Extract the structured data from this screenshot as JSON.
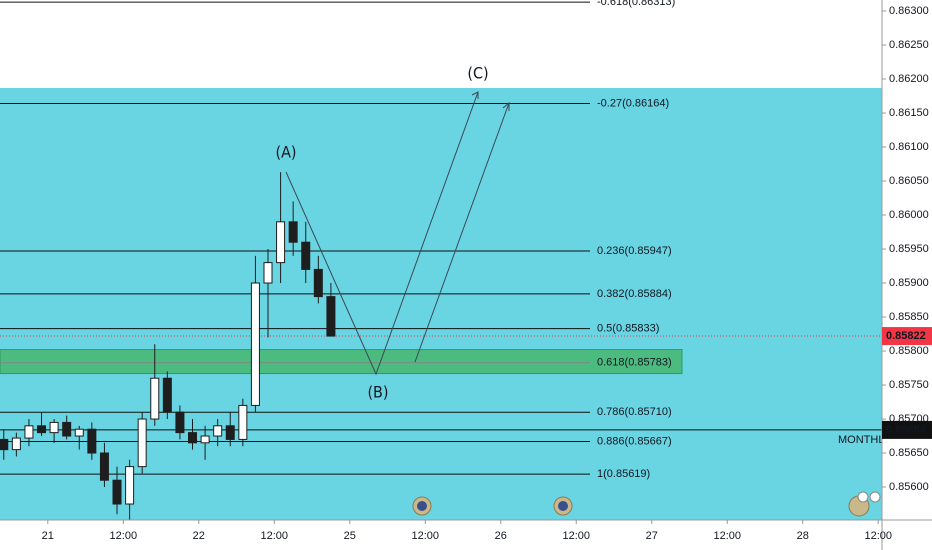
{
  "chart_data": {
    "type": "candlestick",
    "x": [
      -7,
      -5,
      -3,
      -1,
      1,
      3,
      5,
      7,
      9,
      11,
      13,
      15,
      17,
      19,
      21,
      23,
      25,
      27,
      29,
      31,
      33,
      35,
      37,
      39,
      41,
      43,
      45
    ],
    "open": [
      0.8567,
      0.85655,
      0.85672,
      0.8569,
      0.8568,
      0.85695,
      0.85675,
      0.85685,
      0.8565,
      0.8561,
      0.85575,
      0.8563,
      0.857,
      0.8576,
      0.8571,
      0.8568,
      0.85665,
      0.85675,
      0.8569,
      0.8567,
      0.8572,
      0.859,
      0.8593,
      0.8599,
      0.8596,
      0.8592,
      0.8588
    ],
    "high": [
      0.85685,
      0.8568,
      0.857,
      0.8571,
      0.857,
      0.85705,
      0.8569,
      0.85695,
      0.85665,
      0.8563,
      0.8564,
      0.8571,
      0.8581,
      0.8577,
      0.8572,
      0.857,
      0.8569,
      0.857,
      0.8571,
      0.8573,
      0.8594,
      0.8595,
      0.86063,
      0.8602,
      0.8599,
      0.8594,
      0.859
    ],
    "low": [
      0.8564,
      0.85645,
      0.8566,
      0.85675,
      0.85665,
      0.8567,
      0.85655,
      0.8564,
      0.856,
      0.8556,
      0.8555,
      0.8562,
      0.8569,
      0.857,
      0.8567,
      0.85655,
      0.8564,
      0.8566,
      0.8566,
      0.8566,
      0.8571,
      0.8582,
      0.859,
      0.8594,
      0.859,
      0.8587,
      0.85822
    ],
    "close": [
      0.85655,
      0.85672,
      0.8569,
      0.8568,
      0.85695,
      0.85675,
      0.85685,
      0.8565,
      0.8561,
      0.85575,
      0.8563,
      0.857,
      0.8576,
      0.8571,
      0.8568,
      0.85665,
      0.85675,
      0.8569,
      0.8567,
      0.8572,
      0.859,
      0.8593,
      0.8599,
      0.8596,
      0.8592,
      0.8588,
      0.85822
    ],
    "color": "#1e1e1e",
    "xlim": [
      -7.6,
      132.6
    ],
    "xticks": [
      {
        "value": 0,
        "label": "21"
      },
      {
        "value": 12,
        "label": "12:00"
      },
      {
        "value": 24,
        "label": "22"
      },
      {
        "value": 36,
        "label": "12:00"
      },
      {
        "value": 48,
        "label": "25"
      },
      {
        "value": 60,
        "label": "12:00"
      },
      {
        "value": 72,
        "label": "26"
      },
      {
        "value": 84,
        "label": "12:00"
      },
      {
        "value": 96,
        "label": "27"
      },
      {
        "value": 108,
        "label": "12:00"
      },
      {
        "value": 120,
        "label": "28"
      },
      {
        "value": 132,
        "label": "12:00"
      }
    ],
    "ylim": [
      0.855515,
      0.863162
    ],
    "yticks": [
      {
        "value": 0.856,
        "label": "0.85600"
      },
      {
        "value": 0.8565,
        "label": "0.85650"
      },
      {
        "value": 0.857,
        "label": "0.85700"
      },
      {
        "value": 0.8575,
        "label": "0.85750"
      },
      {
        "value": 0.858,
        "label": "0.85800"
      },
      {
        "value": 0.8585,
        "label": "0.85850"
      },
      {
        "value": 0.859,
        "label": "0.85900"
      },
      {
        "value": 0.8595,
        "label": "0.85950"
      },
      {
        "value": 0.86,
        "label": "0.86000"
      },
      {
        "value": 0.8605,
        "label": "0.86050"
      },
      {
        "value": 0.861,
        "label": "0.86100"
      },
      {
        "value": 0.8615,
        "label": "0.86150"
      },
      {
        "value": 0.862,
        "label": "0.86200"
      },
      {
        "value": 0.8625,
        "label": "0.86250"
      },
      {
        "value": 0.863,
        "label": "0.86300"
      }
    ],
    "levels": [
      {
        "label": "-0.618(0.86313)",
        "value": 0.86313
      },
      {
        "label": "-0.27(0.86164)",
        "value": 0.86164
      },
      {
        "label": "0.236(0.85947)",
        "value": 0.85947
      },
      {
        "label": "0.382(0.85884)",
        "value": 0.85884
      },
      {
        "label": "0.5(0.85833)",
        "value": 0.85833
      },
      {
        "label": "0.618(0.85783)",
        "value": 0.85783
      },
      {
        "label": "0.786(0.85710)",
        "value": 0.8571
      },
      {
        "label": "0.886(0.85667)",
        "value": 0.85667
      },
      {
        "label": "1(0.85619)",
        "value": 0.85619
      }
    ],
    "highlighted_level": 5,
    "current_price": {
      "value": 0.85822,
      "label": "0.85822",
      "color": "#f23645"
    },
    "marked_price": {
      "value": 0.85684,
      "label": "0.85684",
      "note": "MONTHLY"
    },
    "waves": [
      "(A)",
      "(B)",
      "(C)"
    ]
  }
}
